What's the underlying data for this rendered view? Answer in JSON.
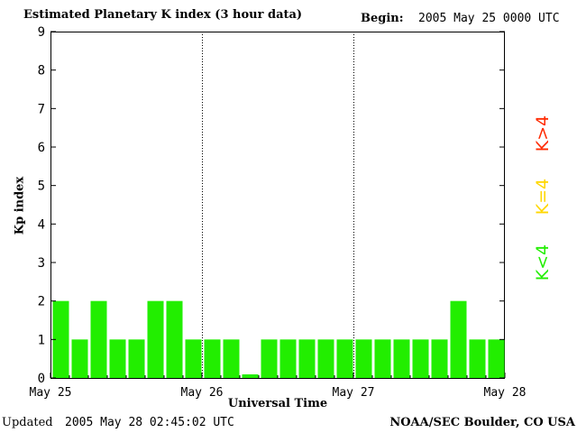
{
  "header": {
    "title": "Estimated Planetary K index (3 hour data)",
    "begin_label": "Begin:",
    "begin_value": "2005 May 25 0000 UTC"
  },
  "footer": {
    "updated_label": "Updated",
    "updated_value": "2005 May 28 02:45:02 UTC",
    "credit": "NOAA/SEC Boulder, CO USA"
  },
  "legend": {
    "high": {
      "label": "K>4",
      "color": "#ff2a00"
    },
    "equal": {
      "label": "K=4",
      "color": "#ffd700"
    },
    "low": {
      "label": "K<4",
      "color": "#22ee00"
    }
  },
  "chart_data": {
    "type": "bar",
    "title": "Estimated Planetary K index (3 hour data)",
    "xlabel": "Universal Time",
    "ylabel": "Kp index",
    "ylim": [
      0,
      9
    ],
    "yticks": [
      0,
      1,
      2,
      3,
      4,
      5,
      6,
      7,
      8,
      9
    ],
    "x_tick_labels": [
      "May 25",
      "May 26",
      "May 27",
      "May 28"
    ],
    "day_separators": [
      "May 26",
      "May 27"
    ],
    "bar_interval_hours": 3,
    "bar_color": "#22ee00",
    "values": [
      2,
      1,
      2,
      1,
      1,
      2,
      2,
      1,
      1,
      1,
      0,
      1,
      1,
      1,
      1,
      1,
      1,
      1,
      1,
      1,
      1,
      2,
      1,
      1
    ]
  }
}
